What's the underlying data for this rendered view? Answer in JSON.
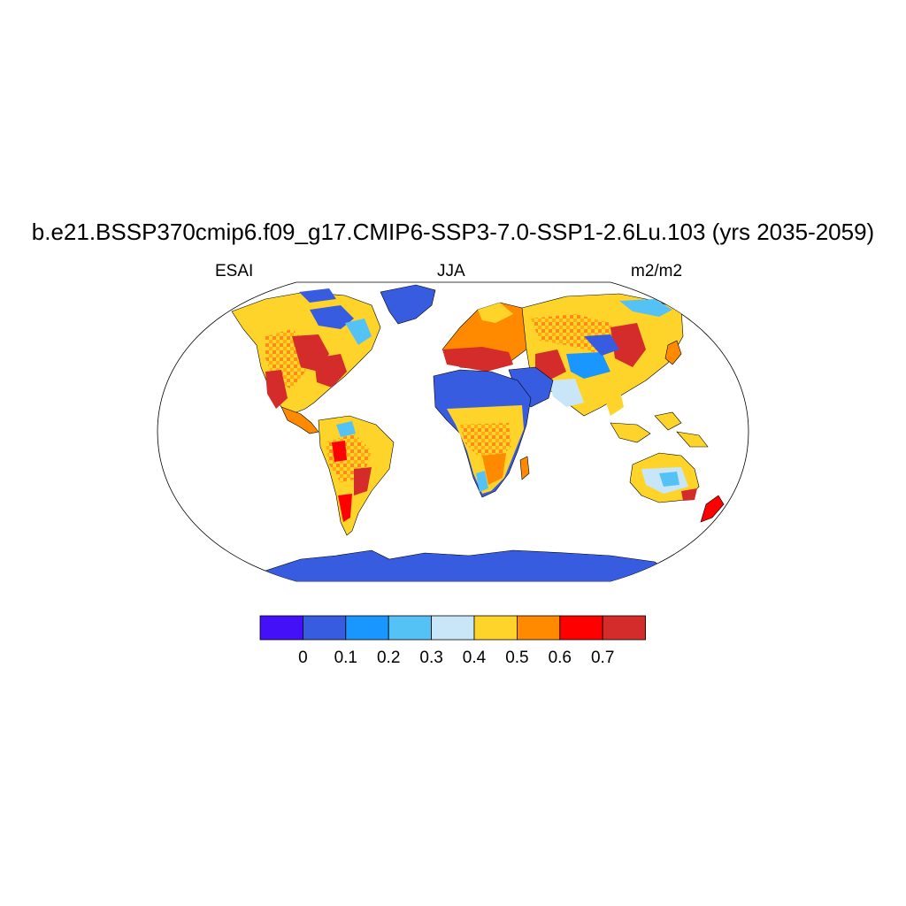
{
  "title": "b.e21.BSSP370cmip6.f09_g17.CMIP6-SSP3-7.0-SSP1-2.6Lu.103 (yrs 2035-2059)",
  "subtitle_left": "ESAI",
  "subtitle_center": "JJA",
  "subtitle_right": "m2/m2",
  "colorbar": {
    "colors": [
      "#4410F8",
      "#385CE0",
      "#1A96FF",
      "#55C2F5",
      "#C9E6F8",
      "#FFD42A",
      "#FF8A00",
      "#FF0000",
      "#D42B2B"
    ],
    "labels": [
      "0",
      "0.1",
      "0.2",
      "0.3",
      "0.4",
      "0.5",
      "0.6",
      "0.7"
    ]
  }
}
